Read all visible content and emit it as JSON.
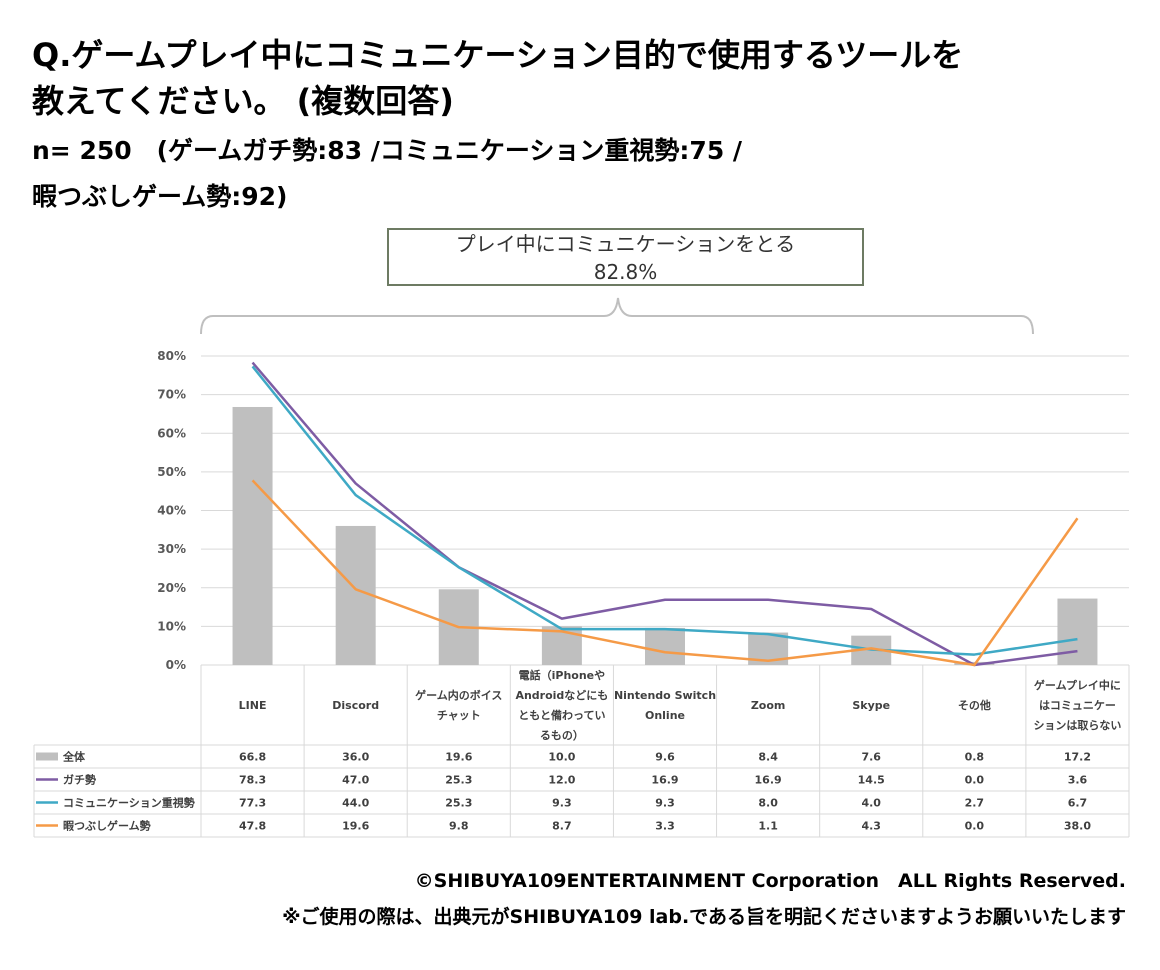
{
  "header": {
    "title_line1": "Q.ゲームプレイ中にコミュニケーション目的で使用するツールを",
    "title_line2": "教えてください。 (複数回答)",
    "sample_line1": "n= 250　(ゲームガチ勢:83 /コミュニケーション重視勢:75 /",
    "sample_line2": "暇つぶしゲーム勢:92)"
  },
  "callout": {
    "label": "プレイ中にコミュニケーションをとる",
    "value": "82.8%"
  },
  "chart_data": {
    "type": "bar",
    "categories": [
      [
        "LINE"
      ],
      [
        "Discord"
      ],
      [
        "ゲーム内のボイス",
        "チャット"
      ],
      [
        "電話（iPhoneや",
        "Androidなどにも",
        "ともと備わってい",
        "るもの）"
      ],
      [
        "Nintendo Switch",
        "Online"
      ],
      [
        "Zoom"
      ],
      [
        "Skype"
      ],
      [
        "その他"
      ],
      [
        "ゲームプレイ中に",
        "はコミュニケー",
        "ションは取らない"
      ]
    ],
    "y_ticks": [
      "0%",
      "10%",
      "20%",
      "30%",
      "40%",
      "50%",
      "60%",
      "70%",
      "80%"
    ],
    "ylim": [
      0,
      80
    ],
    "grid": true,
    "legend": "table-left",
    "series": [
      {
        "name": "全体",
        "type": "bar",
        "color": "#bfbfbf",
        "values": [
          66.8,
          36.0,
          19.6,
          10.0,
          9.6,
          8.4,
          7.6,
          0.8,
          17.2
        ],
        "labels": [
          "66.8",
          "36.0",
          "19.6",
          "10.0",
          "9.6",
          "8.4",
          "7.6",
          "0.8",
          "17.2"
        ]
      },
      {
        "name": "ガチ勢",
        "type": "line",
        "color": "#7e5ca4",
        "values": [
          78.3,
          47.0,
          25.3,
          12.0,
          16.9,
          16.9,
          14.5,
          0.0,
          3.6
        ],
        "labels": [
          "78.3",
          "47.0",
          "25.3",
          "12.0",
          "16.9",
          "16.9",
          "14.5",
          "0.0",
          "3.6"
        ]
      },
      {
        "name": "コミュニケーション重視勢",
        "type": "line",
        "color": "#3fa9c5",
        "values": [
          77.3,
          44.0,
          25.3,
          9.3,
          9.3,
          8.0,
          4.0,
          2.7,
          6.7
        ],
        "labels": [
          "77.3",
          "44.0",
          "25.3",
          "9.3",
          "9.3",
          "8.0",
          "4.0",
          "2.7",
          "6.7"
        ]
      },
      {
        "name": "暇つぶしゲーム勢",
        "type": "line",
        "color": "#f59a47",
        "values": [
          47.8,
          19.6,
          9.8,
          8.7,
          3.3,
          1.1,
          4.3,
          0.0,
          38.0
        ],
        "labels": [
          "47.8",
          "19.6",
          "9.8",
          "8.7",
          "3.3",
          "1.1",
          "4.3",
          "0.0",
          "38.0"
        ]
      }
    ]
  },
  "footer": {
    "copyright": "©SHIBUYA109ENTERTAINMENT Corporation　ALL Rights Reserved.",
    "note": "※ご使用の際は、出典元がSHIBUYA109 lab.である旨を明記くださいますようお願いいたします"
  },
  "colors": {
    "border": "#6d7b63",
    "grid": "#d9d9d9",
    "table_line": "#d9d9d9"
  }
}
